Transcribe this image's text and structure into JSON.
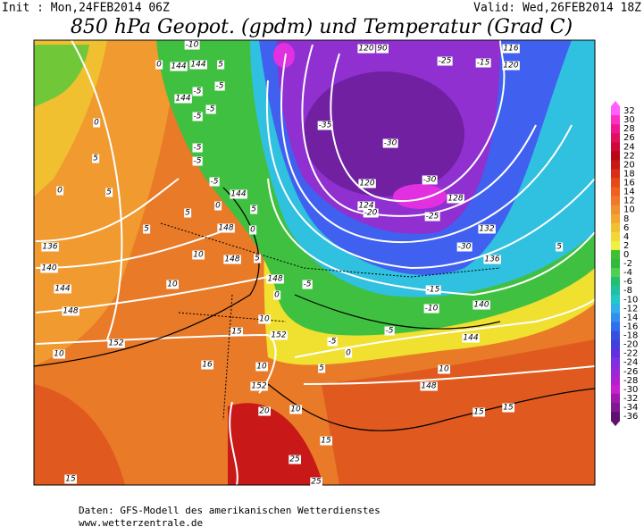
{
  "header": {
    "init": "Init : Mon,24FEB2014 06Z",
    "valid": "Valid: Wed,26FEB2014 18Z",
    "title": "850 hPa Geopot. (gpdm) und Temperatur (Grad C)"
  },
  "map": {
    "labels": [
      "-10",
      "0",
      "144",
      "144",
      "5",
      "-5",
      "144",
      "-5",
      "-5",
      "-5",
      "0",
      "-5",
      "-5",
      "5",
      "-5",
      "144",
      "0",
      "5",
      "5",
      "0",
      "5",
      "148",
      "0",
      "5",
      "136",
      "10",
      "148",
      "5",
      "140",
      "148",
      "0",
      "-5",
      "144",
      "10",
      "148",
      "10",
      "15",
      "152",
      "152",
      "10",
      "16",
      "10",
      "152",
      "20",
      "10",
      "15",
      "25",
      "25",
      "15",
      "120",
      "90",
      "-35",
      "-30",
      "-25",
      "-15",
      "116",
      "120",
      "120",
      "124",
      "-20",
      "-30",
      "128",
      "-25",
      "132",
      "-30",
      "136",
      "5",
      "-15",
      "-10",
      "140",
      "-5",
      "144",
      "-5",
      "0",
      "5",
      "10",
      "148",
      "15",
      "15"
    ]
  },
  "colorbar": {
    "ticks": [
      32,
      30,
      28,
      26,
      24,
      22,
      20,
      18,
      16,
      14,
      12,
      10,
      8,
      6,
      4,
      2,
      0,
      -2,
      -4,
      -6,
      -8,
      -10,
      -12,
      -14,
      -16,
      -18,
      -20,
      -22,
      -24,
      -26,
      -28,
      -30,
      -32,
      -34,
      -36
    ],
    "colors": [
      "#ff60ff",
      "#ff30c0",
      "#f01890",
      "#e01060",
      "#d00838",
      "#b80818",
      "#c81818",
      "#d83018",
      "#e84818",
      "#f06020",
      "#f07828",
      "#f09030",
      "#f0a830",
      "#f0c030",
      "#f0d838",
      "#f0f040",
      "#40c030",
      "#30b840",
      "#50d050",
      "#20c070",
      "#20c0a0",
      "#20c8c8",
      "#30b0e8",
      "#3090f0",
      "#3070f0",
      "#3850e0",
      "#4040e0",
      "#6030e0",
      "#8030e0",
      "#9828d8",
      "#b020d0",
      "#c820d0",
      "#a018b0",
      "#801890",
      "#601070"
    ]
  },
  "footer": {
    "source": "Daten: GFS-Modell des amerikanischen Wetterdienstes",
    "url": "www.wetterzentrale.de"
  }
}
